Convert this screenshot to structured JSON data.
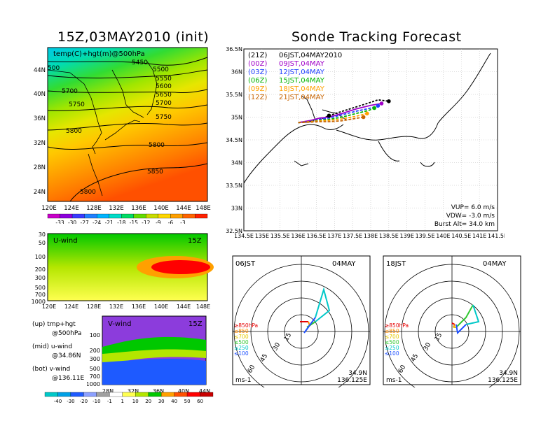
{
  "left_title": "15Z,03MAY2010 (init)",
  "right_title": "Sonde Tracking Forecast",
  "top_map": {
    "label": "temp(C)+hgt(m)@500hPa",
    "lat_ticks": [
      "44N",
      "40N",
      "36N",
      "32N",
      "28N",
      "24N"
    ],
    "lon_ticks": [
      "120E",
      "124E",
      "128E",
      "132E",
      "136E",
      "140E",
      "144E",
      "148E"
    ],
    "contour_labels": [
      "5450",
      "5500",
      "5550",
      "5600",
      "5650",
      "5700",
      "5700",
      "5750",
      "5750",
      "5800",
      "5800",
      "5800",
      "5850",
      "5800",
      "500"
    ],
    "colorbar_labels": [
      "-33",
      "-30",
      "-27",
      "-24",
      "-21",
      "-18",
      "-15",
      "-12",
      "-9",
      "-6",
      "-3"
    ],
    "colorbar_colors": [
      "#c800c8",
      "#8c00dc",
      "#3a3aff",
      "#2080ff",
      "#00b4ff",
      "#00dcc8",
      "#00dc64",
      "#64dc00",
      "#c8dc00",
      "#ffd700",
      "#ffa000",
      "#ff6400",
      "#ff2000"
    ]
  },
  "uwind": {
    "label": "U-wind",
    "time": "15Z",
    "p_ticks": [
      "30",
      "50",
      "100",
      "200",
      "300",
      "500",
      "700",
      "1000"
    ],
    "lon_ticks": [
      "120E",
      "124E",
      "128E",
      "132E",
      "136E",
      "140E",
      "144E",
      "148E"
    ]
  },
  "vwind": {
    "label": "V-wind",
    "time": "15Z",
    "p_ticks": [
      "100",
      "200",
      "300",
      "500",
      "700",
      "1000"
    ],
    "lat_ticks": [
      "28N",
      "32N",
      "36N",
      "40N",
      "44N"
    ]
  },
  "bottom_colorbar": {
    "labels": [
      "-40",
      "-30",
      "-20",
      "-10",
      "-1",
      "1",
      "10",
      "20",
      "30",
      "40",
      "50",
      "60"
    ],
    "colors": [
      "#00c8c8",
      "#00a0e6",
      "#1e5aff",
      "#8ca0ff",
      "#a0a0a0",
      "#ffffff",
      "#ffff50",
      "#b4e600",
      "#00c800",
      "#ffa000",
      "#ff5000",
      "#ff0000",
      "#c80000"
    ]
  },
  "legend_text": [
    {
      "a": "(up) tmp+hgt",
      "b": "@500hPa"
    },
    {
      "a": "(mid) u-wind",
      "b": "@34.86N"
    },
    {
      "a": "(bot) v-wind",
      "b": "@136.11E"
    }
  ],
  "tracking": {
    "lat_ticks": [
      "36.5N",
      "36N",
      "35.5N",
      "35N",
      "34.5N",
      "34N",
      "33.5N",
      "33N",
      "32.5N"
    ],
    "lon_ticks": [
      "134.5E",
      "135E",
      "135.5E",
      "136E",
      "136.5E",
      "137E",
      "137.5E",
      "138E",
      "138.5E",
      "139E",
      "139.5E",
      "140E",
      "140.5E",
      "141E",
      "141.5E"
    ],
    "legend": [
      {
        "code": "(21Z)",
        "text": "06JST,04MAY2010",
        "color": "#000000"
      },
      {
        "code": "(00Z)",
        "text": "09JST,04MAY",
        "color": "#a000c8"
      },
      {
        "code": "(03Z)",
        "text": "12JST,04MAY",
        "color": "#2040ff"
      },
      {
        "code": "(06Z)",
        "text": "15JST,04MAY",
        "color": "#00b400"
      },
      {
        "code": "(09Z)",
        "text": "18JST,04MAY",
        "color": "#ffa000"
      },
      {
        "code": "(12Z)",
        "text": "21JST,04MAY",
        "color": "#c86400"
      }
    ],
    "info": [
      "VUP=  6.0  m/s",
      "VDW=  -3.0  m/s",
      "Burst Alt=  34.0  km"
    ]
  },
  "hodo_left": {
    "time": "06JST",
    "date": "04MAY",
    "pos1": "34.9N",
    "pos2": "136.125E",
    "unit": "ms-1",
    "rings": [
      "15",
      "30",
      "45",
      "60"
    ],
    "levels": [
      {
        "label": "≥850hPa",
        "color": "#e60000"
      },
      {
        "label": "≤850",
        "color": "#ff8c00"
      },
      {
        "label": "≤700",
        "color": "#e6c800"
      },
      {
        "label": "≤500",
        "color": "#32c832"
      },
      {
        "label": "≤250",
        "color": "#00c8c8"
      },
      {
        "label": "≤100",
        "color": "#1e50ff"
      }
    ]
  },
  "hodo_right": {
    "time": "18JST",
    "date": "04MAY",
    "pos1": "34.9N",
    "pos2": "136.125E",
    "unit": "ms-1",
    "rings": [
      "15",
      "30",
      "45",
      "60"
    ],
    "levels": [
      {
        "label": "≥850hPa",
        "color": "#e60000"
      },
      {
        "label": "≤850",
        "color": "#ff8c00"
      },
      {
        "label": "≤700",
        "color": "#e6c800"
      },
      {
        "label": "≤500",
        "color": "#32c832"
      },
      {
        "label": "≤250",
        "color": "#00c8c8"
      },
      {
        "label": "≤100",
        "color": "#1e50ff"
      }
    ]
  },
  "chart_data": [
    {
      "type": "heatmap",
      "title": "temp(C)+hgt(m)@500hPa",
      "x": "longitude 120E-148E",
      "y": "latitude 24N-46N",
      "colorbar": [
        -33,
        -30,
        -27,
        -24,
        -21,
        -18,
        -15,
        -12,
        -9,
        -6,
        -3
      ],
      "contours": [
        5450,
        5500,
        5550,
        5600,
        5650,
        5700,
        5750,
        5800,
        5850
      ]
    },
    {
      "type": "heatmap",
      "title": "U-wind",
      "x": "longitude 120E-148E",
      "y": "pressure hPa 1000-30"
    },
    {
      "type": "heatmap",
      "title": "V-wind",
      "x": "latitude 28N-44N",
      "y": "pressure hPa 1000-100",
      "colorbar": [
        -40,
        -30,
        -20,
        -10,
        -1,
        1,
        10,
        20,
        30,
        40,
        50,
        60
      ]
    },
    {
      "type": "line",
      "title": "Sonde Tracking Forecast",
      "xlim": [
        134.5,
        141.5
      ],
      "ylim": [
        32.5,
        36.5
      ],
      "series": [
        {
          "name": "06JST,04MAY2010",
          "x": [
            136.0,
            136.3,
            136.6,
            136.85,
            137.1,
            137.5,
            137.9,
            138.2,
            138.5
          ],
          "y": [
            34.88,
            34.9,
            34.95,
            35.03,
            35.1,
            35.2,
            35.3,
            35.38,
            35.35
          ]
        },
        {
          "name": "09JST,04MAY",
          "x": [
            136.0,
            136.3,
            136.6,
            136.85,
            137.2,
            137.6,
            138.0,
            138.3
          ],
          "y": [
            34.88,
            34.92,
            34.98,
            35.0,
            35.08,
            35.18,
            35.26,
            35.3
          ]
        },
        {
          "name": "12JST,04MAY",
          "x": [
            136.0,
            136.3,
            136.6,
            136.85,
            137.2,
            137.6,
            138.0,
            138.2
          ],
          "y": [
            34.88,
            34.9,
            34.95,
            34.98,
            35.05,
            35.13,
            35.2,
            35.25
          ]
        },
        {
          "name": "15JST,04MAY",
          "x": [
            136.0,
            136.3,
            136.6,
            136.85,
            137.2,
            137.6,
            137.95,
            138.1
          ],
          "y": [
            34.88,
            34.9,
            34.93,
            34.95,
            35.0,
            35.08,
            35.15,
            35.2
          ]
        },
        {
          "name": "18JST,04MAY",
          "x": [
            136.0,
            136.3,
            136.6,
            136.85,
            137.2,
            137.6,
            137.9
          ],
          "y": [
            34.88,
            34.9,
            34.92,
            34.93,
            34.96,
            35.02,
            35.08
          ]
        },
        {
          "name": "21JST,04MAY",
          "x": [
            136.0,
            136.3,
            136.6,
            136.85,
            137.2,
            137.5,
            137.8
          ],
          "y": [
            34.88,
            34.89,
            34.9,
            34.9,
            34.92,
            34.96,
            35.0
          ]
        }
      ]
    }
  ]
}
